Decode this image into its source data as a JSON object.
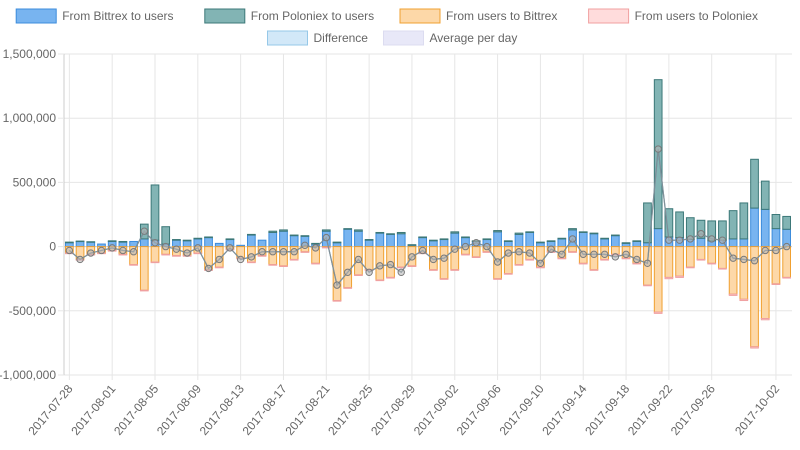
{
  "chart_data": {
    "type": "bar",
    "title": "",
    "xlabel": "",
    "ylabel": "",
    "ylim": [
      -1000000,
      1500000
    ],
    "y_ticks": [
      "1,500,000",
      "1,000,000",
      "500,000",
      "0",
      "-500,000",
      "-1,000,000"
    ],
    "y_tick_values": [
      1500000,
      1000000,
      500000,
      0,
      -500000,
      -1000000
    ],
    "grid": true,
    "legend_position": "top",
    "dates": [
      "2017-07-28",
      "2017-07-29",
      "2017-07-30",
      "2017-07-31",
      "2017-08-01",
      "2017-08-02",
      "2017-08-03",
      "2017-08-04",
      "2017-08-05",
      "2017-08-06",
      "2017-08-07",
      "2017-08-08",
      "2017-08-09",
      "2017-08-10",
      "2017-08-11",
      "2017-08-12",
      "2017-08-13",
      "2017-08-14",
      "2017-08-15",
      "2017-08-16",
      "2017-08-17",
      "2017-08-18",
      "2017-08-19",
      "2017-08-20",
      "2017-08-21",
      "2017-08-22",
      "2017-08-23",
      "2017-08-24",
      "2017-08-25",
      "2017-08-26",
      "2017-08-27",
      "2017-08-28",
      "2017-08-29",
      "2017-08-30",
      "2017-08-31",
      "2017-09-01",
      "2017-09-02",
      "2017-09-03",
      "2017-09-04",
      "2017-09-05",
      "2017-09-06",
      "2017-09-07",
      "2017-09-08",
      "2017-09-09",
      "2017-09-10",
      "2017-09-11",
      "2017-09-12",
      "2017-09-13",
      "2017-09-14",
      "2017-09-15",
      "2017-09-16",
      "2017-09-17",
      "2017-09-18",
      "2017-09-19",
      "2017-09-20",
      "2017-09-21",
      "2017-09-22",
      "2017-09-23",
      "2017-09-24",
      "2017-09-25",
      "2017-09-26",
      "2017-09-27",
      "2017-09-28",
      "2017-09-29",
      "2017-09-30",
      "2017-10-01",
      "2017-10-02",
      "2017-10-03"
    ],
    "x_tick_labels": [
      "2017-07-28",
      "2017-08-01",
      "2017-08-05",
      "2017-08-09",
      "2017-08-13",
      "2017-08-17",
      "2017-08-21",
      "2017-08-25",
      "2017-08-29",
      "2017-09-02",
      "2017-09-06",
      "2017-09-10",
      "2017-09-14",
      "2017-09-18",
      "2017-09-22",
      "2017-09-26",
      "2017-10-02"
    ],
    "series": [
      {
        "name": "From Bittrex to users",
        "kind": "bar",
        "stack": "pos",
        "color": "#78b4f0",
        "border": "#3c8cdc",
        "values": [
          30000,
          40000,
          35000,
          20000,
          40000,
          35000,
          40000,
          60000,
          50000,
          20000,
          50000,
          45000,
          60000,
          70000,
          25000,
          55000,
          10000,
          90000,
          50000,
          110000,
          120000,
          85000,
          80000,
          20000,
          120000,
          30000,
          135000,
          120000,
          50000,
          105000,
          95000,
          100000,
          10000,
          70000,
          45000,
          55000,
          105000,
          70000,
          40000,
          55000,
          115000,
          40000,
          95000,
          110000,
          30000,
          40000,
          60000,
          130000,
          110000,
          100000,
          60000,
          85000,
          25000,
          40000,
          30000,
          140000,
          75000,
          70000,
          55000,
          65000,
          45000,
          50000,
          60000,
          60000,
          300000,
          290000,
          140000,
          135000
        ]
      },
      {
        "name": "From Poloniex to users",
        "kind": "bar",
        "stack": "pos",
        "color": "#82b4b4",
        "border": "#3c7878",
        "values": [
          5000,
          3000,
          3000,
          0,
          5000,
          5000,
          0,
          115000,
          430000,
          135000,
          5000,
          5000,
          5000,
          5000,
          0,
          5000,
          0,
          5000,
          0,
          10000,
          10000,
          5000,
          5000,
          5000,
          10000,
          5000,
          5000,
          10000,
          5000,
          5000,
          5000,
          10000,
          5000,
          5000,
          5000,
          5000,
          10000,
          5000,
          5000,
          5000,
          10000,
          5000,
          10000,
          5000,
          5000,
          5000,
          5000,
          10000,
          5000,
          5000,
          5000,
          5000,
          5000,
          5000,
          310000,
          1160000,
          220000,
          200000,
          170000,
          140000,
          155000,
          150000,
          220000,
          280000,
          380000,
          220000,
          110000,
          100000
        ]
      },
      {
        "name": "From users to Bittrex",
        "kind": "bar",
        "stack": "neg",
        "color": "#fdd8a8",
        "border": "#f0a030",
        "values": [
          -50000,
          -100000,
          -60000,
          -50000,
          -30000,
          -60000,
          -140000,
          -340000,
          -120000,
          -60000,
          -70000,
          -70000,
          -50000,
          -180000,
          -160000,
          -20000,
          -90000,
          -120000,
          -70000,
          -140000,
          -150000,
          -100000,
          -40000,
          -130000,
          -5000,
          -420000,
          -320000,
          -220000,
          -180000,
          -260000,
          -240000,
          -160000,
          -150000,
          -50000,
          -180000,
          -250000,
          -180000,
          -60000,
          -80000,
          -40000,
          -250000,
          -210000,
          -140000,
          -100000,
          -160000,
          -40000,
          -90000,
          -40000,
          -130000,
          -180000,
          -100000,
          -60000,
          -90000,
          -130000,
          -300000,
          -510000,
          -240000,
          -230000,
          -160000,
          -100000,
          -130000,
          -170000,
          -370000,
          -410000,
          -780000,
          -560000,
          -290000,
          -240000
        ]
      },
      {
        "name": "From users to Poloniex",
        "kind": "bar",
        "stack": "neg",
        "color": "#ffdcdc",
        "border": "#f0a0a0",
        "values": [
          -5000,
          -5000,
          -5000,
          -5000,
          -5000,
          -5000,
          -5000,
          -5000,
          -5000,
          -5000,
          -5000,
          -5000,
          -5000,
          -5000,
          -5000,
          -5000,
          -5000,
          -5000,
          -5000,
          -5000,
          -5000,
          -5000,
          -5000,
          -5000,
          -5000,
          -5000,
          -5000,
          -5000,
          -5000,
          -5000,
          -5000,
          -5000,
          -5000,
          -5000,
          -5000,
          -5000,
          -5000,
          -5000,
          -5000,
          -5000,
          -5000,
          -5000,
          -5000,
          -5000,
          -5000,
          -5000,
          -5000,
          -5000,
          -5000,
          -5000,
          -5000,
          -5000,
          -5000,
          -5000,
          -5000,
          -10000,
          -10000,
          -10000,
          -5000,
          -5000,
          -5000,
          -5000,
          -10000,
          -10000,
          -10000,
          -10000,
          -5000,
          -5000
        ]
      },
      {
        "name": "Difference",
        "kind": "line",
        "color": "#3c96c8",
        "values": [
          -30000,
          -100000,
          -50000,
          -30000,
          -10000,
          -30000,
          -40000,
          120000,
          30000,
          0,
          -20000,
          -50000,
          -10000,
          -170000,
          -100000,
          -10000,
          -100000,
          -80000,
          -40000,
          -40000,
          -40000,
          -40000,
          10000,
          -10000,
          70000,
          -300000,
          -200000,
          -100000,
          -200000,
          -150000,
          -140000,
          -200000,
          -80000,
          -30000,
          -100000,
          -90000,
          -20000,
          0,
          30000,
          0,
          -120000,
          -50000,
          -40000,
          -50000,
          -130000,
          -20000,
          -60000,
          60000,
          -60000,
          -60000,
          -60000,
          -80000,
          -60000,
          -100000,
          -130000,
          760000,
          50000,
          50000,
          60000,
          100000,
          60000,
          50000,
          -90000,
          -100000,
          -110000,
          -30000,
          -30000,
          0
        ]
      },
      {
        "name": "Average per day",
        "kind": "line",
        "color": "#8c8c8c",
        "values": [
          -30000,
          -100000,
          -50000,
          -30000,
          -10000,
          -30000,
          -40000,
          120000,
          30000,
          0,
          -20000,
          -50000,
          -10000,
          -170000,
          -100000,
          -10000,
          -100000,
          -80000,
          -40000,
          -40000,
          -40000,
          -40000,
          10000,
          -10000,
          70000,
          -300000,
          -200000,
          -100000,
          -200000,
          -150000,
          -140000,
          -200000,
          -80000,
          -30000,
          -100000,
          -90000,
          -20000,
          0,
          30000,
          0,
          -120000,
          -50000,
          -40000,
          -50000,
          -130000,
          -20000,
          -60000,
          60000,
          -60000,
          -60000,
          -60000,
          -80000,
          -60000,
          -100000,
          -130000,
          760000,
          50000,
          50000,
          60000,
          100000,
          60000,
          50000,
          -90000,
          -100000,
          -110000,
          -30000,
          -30000,
          0
        ]
      }
    ]
  },
  "legend": [
    {
      "label": "From Bittrex to users",
      "fill": "#78b4f0",
      "stroke": "#3c8cdc"
    },
    {
      "label": "From Poloniex to users",
      "fill": "#82b4b4",
      "stroke": "#3c7878"
    },
    {
      "label": "From users to Bittrex",
      "fill": "#fdd8a8",
      "stroke": "#f0a030"
    },
    {
      "label": "From users to Poloniex",
      "fill": "#ffdcdc",
      "stroke": "#f0a0a0"
    },
    {
      "label": "Difference",
      "fill": "#d2e8f8",
      "stroke": "#96c8e8"
    },
    {
      "label": "Average per day",
      "fill": "#e8e8f8",
      "stroke": "#dcdcf0"
    }
  ]
}
